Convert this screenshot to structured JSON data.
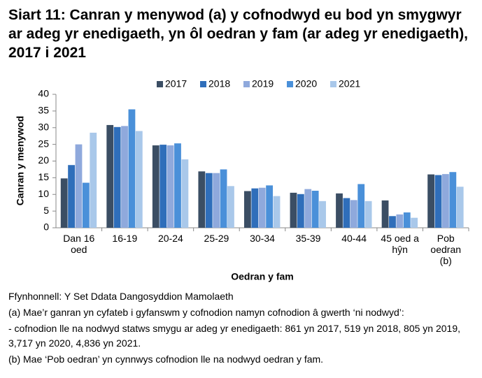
{
  "chart_data": {
    "type": "bar",
    "title": "Siart 11: Canran y menywod (a) y cofnodwyd eu bod yn smygwyr ar adeg yr enedigaeth, yn ôl oedran y fam (ar adeg yr enedigaeth), 2017 i 2021",
    "y_label": "Canran y menywod",
    "x_label": "Oedran y fam",
    "categories": [
      [
        "Dan 16",
        "oed"
      ],
      [
        "16-19"
      ],
      [
        "20-24"
      ],
      [
        "25-29"
      ],
      [
        "30-34"
      ],
      [
        "35-39"
      ],
      [
        "40-44"
      ],
      [
        "45 oed a",
        "hŷn"
      ],
      [
        "Pob",
        "oedran",
        "(b)"
      ]
    ],
    "series": [
      {
        "name": "2017",
        "color": "#3b4e64",
        "values": [
          14.8,
          30.8,
          24.7,
          16.9,
          11,
          10.5,
          10.3,
          8.2,
          16
        ]
      },
      {
        "name": "2018",
        "color": "#2f6eba",
        "values": [
          18.8,
          30.2,
          24.9,
          16.4,
          11.8,
          10.1,
          8.9,
          3.5,
          15.8
        ]
      },
      {
        "name": "2019",
        "color": "#8fa9dc",
        "values": [
          25,
          30.5,
          24.7,
          16.4,
          12,
          11.6,
          8.3,
          4,
          16.1
        ]
      },
      {
        "name": "2020",
        "color": "#4a90d9",
        "values": [
          13.5,
          35.5,
          25.3,
          17.5,
          12.7,
          11.1,
          13.1,
          4.6,
          16.7
        ]
      },
      {
        "name": "2021",
        "color": "#a9c8ea",
        "values": [
          28.5,
          29,
          20.5,
          12.5,
          9.5,
          8,
          8,
          3,
          12.3
        ]
      }
    ],
    "ylim": [
      0,
      40
    ],
    "yticks": [
      0,
      5,
      10,
      15,
      20,
      25,
      30,
      35,
      40
    ],
    "grid": false,
    "legend": "top",
    "notes": [
      "Ffynhonnell: Y Set Ddata Dangosyddion Mamolaeth",
      "(a) Mae’r ganran yn cyfateb i gyfanswm y cofnodion namyn cofnodion â gwerth ‘ni nodwyd’:",
      "- cofnodion lle na nodwyd statws smygu ar adeg yr enedigaeth: 861 yn 2017, 519 yn 2018, 805 yn 2019, 3,717 yn 2020, 4,836 yn 2021.",
      "(b) Mae ‘Pob oedran’ yn cynnwys cofnodion lle na nodwyd oedran y fam."
    ]
  }
}
